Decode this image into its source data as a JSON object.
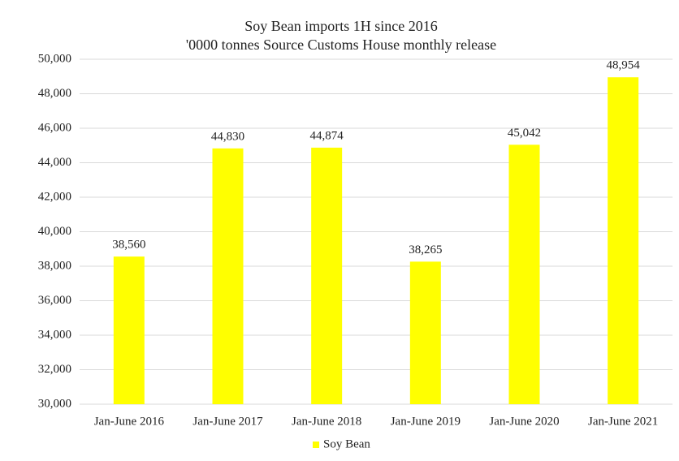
{
  "chart_data": {
    "type": "bar",
    "title": "Soy Bean imports 1H since 2016",
    "subtitle": "'0000 tonnes Source Customs House monthly release",
    "categories": [
      "Jan-June 2016",
      "Jan-June 2017",
      "Jan-June 2018",
      "Jan-June 2019",
      "Jan-June 2020",
      "Jan-June 2021"
    ],
    "series": [
      {
        "name": "Soy Bean",
        "color": "#ffff00",
        "values": [
          38560,
          44830,
          44874,
          38265,
          45042,
          48954
        ],
        "value_labels": [
          "38,560",
          "44,830",
          "44,874",
          "38,265",
          "45,042",
          "48,954"
        ]
      }
    ],
    "ylim": [
      30000,
      50000
    ],
    "yticks": [
      {
        "value": 30000,
        "label": "30,000"
      },
      {
        "value": 32000,
        "label": "32,000"
      },
      {
        "value": 34000,
        "label": "34,000"
      },
      {
        "value": 36000,
        "label": "36,000"
      },
      {
        "value": 38000,
        "label": "38,000"
      },
      {
        "value": 40000,
        "label": "40,000"
      },
      {
        "value": 42000,
        "label": "42,000"
      },
      {
        "value": 44000,
        "label": "44,000"
      },
      {
        "value": 46000,
        "label": "46,000"
      },
      {
        "value": 48000,
        "label": "48,000"
      },
      {
        "value": 50000,
        "label": "50,000"
      }
    ],
    "grid": true,
    "legend": "bottom"
  }
}
